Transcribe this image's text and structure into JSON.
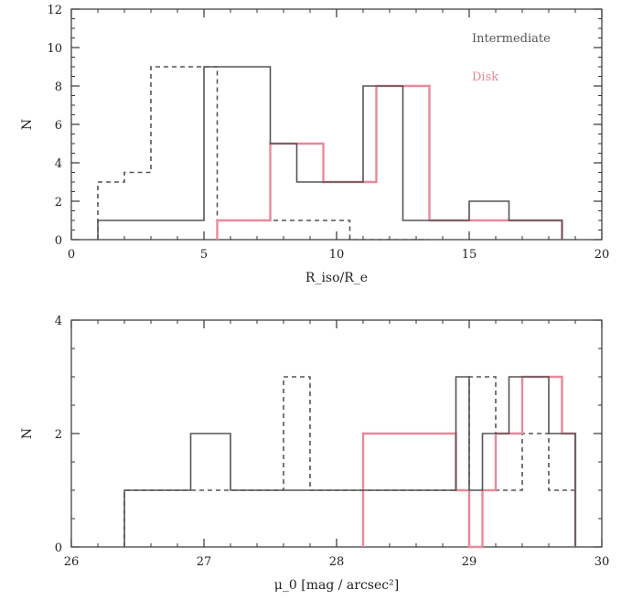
{
  "chart_data": [
    {
      "type": "histogram-step",
      "xlabel": "R_iso/R_e",
      "ylabel": "N",
      "xlim": [
        0,
        20
      ],
      "ylim": [
        0,
        12
      ],
      "xticks": [
        0,
        5,
        10,
        15,
        20
      ],
      "yticks": [
        0,
        2,
        4,
        6,
        8,
        10,
        12
      ],
      "grid": false,
      "legend_position": "top-right",
      "legend": [
        "Intermediate",
        "Disk"
      ],
      "series": [
        {
          "name": "Intermediate",
          "color": "#555555",
          "dash": "dashed",
          "edges": [
            1,
            2,
            3,
            4,
            5.5,
            6.5,
            7.5,
            8.5,
            9.5,
            10.5,
            11.5,
            12.5,
            13.5
          ],
          "counts": [
            3,
            3.5,
            9,
            9,
            1,
            1,
            1,
            1,
            1,
            0,
            0,
            0
          ]
        },
        {
          "name": "Disk",
          "color": "#e8899a",
          "dash": "solid",
          "edges": [
            5.5,
            6.5,
            7.5,
            8.5,
            9.5,
            10.5,
            11.5,
            12.5,
            13.5,
            14.5,
            15.5,
            16.5,
            17.5,
            18.5
          ],
          "counts": [
            1,
            1,
            5,
            5,
            3,
            3,
            8,
            8,
            1,
            1,
            1,
            1,
            1
          ]
        },
        {
          "name": "",
          "color": "#555555",
          "dash": "solid",
          "edges": [
            1,
            3,
            5,
            6.5,
            7.5,
            8.5,
            9.5,
            11,
            12.5,
            14.5,
            15,
            16.5,
            18.5
          ],
          "counts": [
            1,
            1,
            9,
            9,
            5,
            3,
            3,
            8,
            1,
            1,
            2,
            1
          ]
        }
      ]
    },
    {
      "type": "histogram-step",
      "xlabel": "μ_0 [mag / arcsec²]",
      "ylabel": "N",
      "xlim": [
        26,
        30
      ],
      "ylim": [
        0,
        4
      ],
      "xticks": [
        26,
        27,
        28,
        29,
        30
      ],
      "yticks": [
        0,
        2,
        4
      ],
      "grid": false,
      "series": [
        {
          "name": "",
          "color": "#555555",
          "dash": "dashed",
          "edges": [
            26.4,
            26.6,
            26.8,
            27.0,
            27.2,
            27.4,
            27.6,
            27.8,
            28.0,
            28.2,
            28.4,
            28.6,
            28.8,
            29.0,
            29.2,
            29.4,
            29.6,
            29.8
          ],
          "counts": [
            1,
            1,
            1,
            1,
            1,
            1,
            3,
            1,
            1,
            1,
            1,
            1,
            1,
            3,
            1,
            2,
            1
          ]
        },
        {
          "name": "",
          "color": "#e8899a",
          "dash": "solid",
          "edges": [
            28.2,
            28.3,
            28.6,
            28.9,
            29.0,
            29.1,
            29.2,
            29.3,
            29.4,
            29.6,
            29.7,
            29.8
          ],
          "counts": [
            2,
            2,
            2,
            1,
            0,
            1,
            2,
            2,
            3,
            3,
            2
          ]
        },
        {
          "name": "",
          "color": "#555555",
          "dash": "solid",
          "edges": [
            26.4,
            26.9,
            27.2,
            27.4,
            27.6,
            27.9,
            28.0,
            28.3,
            28.6,
            28.9,
            29.0,
            29.1,
            29.3,
            29.6,
            29.8
          ],
          "counts": [
            1,
            2,
            1,
            1,
            1,
            1,
            1,
            1,
            1,
            3,
            1,
            2,
            3,
            2
          ]
        }
      ]
    }
  ]
}
